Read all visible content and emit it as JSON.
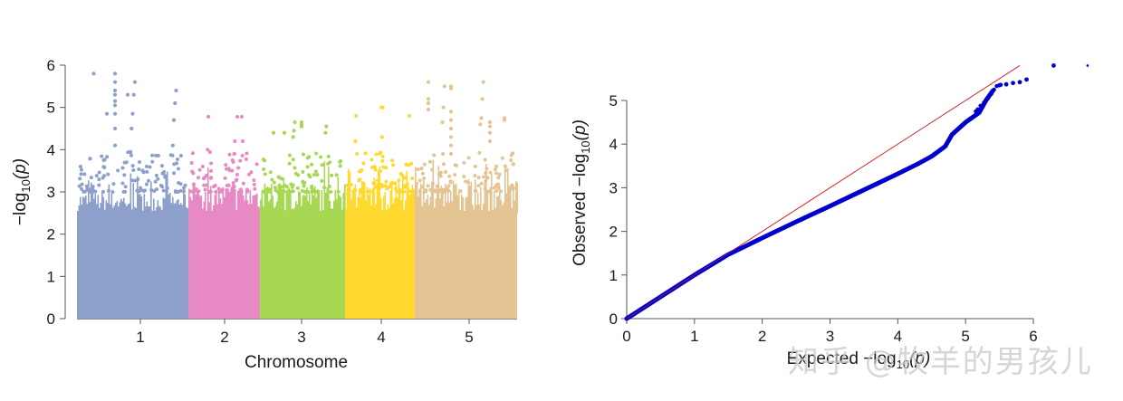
{
  "chart_data": [
    {
      "type": "scatter",
      "subtype": "manhattan",
      "title": "",
      "xlabel": "Chromosome",
      "ylabel": "-log10(p)",
      "ylim": [
        0,
        6
      ],
      "yticks": [
        "0",
        "1",
        "2",
        "3",
        "4",
        "5",
        "6"
      ],
      "categories": [
        "1",
        "2",
        "3",
        "4",
        "5"
      ],
      "grid": false,
      "legend": null,
      "series": [
        {
          "name": "1",
          "color": "#8da0cb",
          "bulk_max": 3.0,
          "peaks": [
            5.8,
            5.6,
            5.4,
            5.3,
            5.1,
            4.85,
            4.7,
            4.5,
            4.1,
            3.95
          ]
        },
        {
          "name": "2",
          "color": "#e78ac3",
          "bulk_max": 3.2,
          "peaks": [
            4.78,
            4.2,
            4.0,
            3.9
          ]
        },
        {
          "name": "3",
          "color": "#a6d854",
          "bulk_max": 3.2,
          "peaks": [
            4.65,
            4.55,
            4.45,
            4.4,
            4.3
          ]
        },
        {
          "name": "4",
          "color": "#ffd92f",
          "bulk_max": 3.3,
          "peaks": [
            5.0,
            4.8,
            4.3,
            4.2
          ]
        },
        {
          "name": "5",
          "color": "#e5c494",
          "bulk_max": 3.3,
          "peaks": [
            5.6,
            5.5,
            5.2,
            5.0,
            4.75,
            4.65,
            4.6
          ]
        }
      ]
    },
    {
      "type": "scatter",
      "subtype": "qq",
      "title": "",
      "xlabel": "Expected -log10(p)",
      "ylabel": "Observed -log10(p)",
      "xlim": [
        0,
        6
      ],
      "ylim": [
        0,
        5
      ],
      "xticks": [
        "0",
        "1",
        "2",
        "3",
        "4",
        "5",
        "6"
      ],
      "yticks": [
        "0",
        "1",
        "2",
        "3",
        "4",
        "5"
      ],
      "grid": false,
      "reference_line": {
        "color": "#d62728",
        "x": [
          0,
          5.8
        ],
        "y": [
          0,
          5.8
        ]
      },
      "series": [
        {
          "name": "observed",
          "color": "#0000cc",
          "x": [
            0,
            0.5,
            1.0,
            1.5,
            2.0,
            2.5,
            3.0,
            3.5,
            4.0,
            4.3,
            4.5,
            4.7,
            4.8,
            5.0,
            5.2,
            5.3,
            5.4,
            5.5,
            5.6,
            5.7,
            5.8,
            5.9,
            6.3,
            6.8
          ],
          "y": [
            0,
            0.5,
            1.0,
            1.47,
            1.85,
            2.22,
            2.58,
            2.95,
            3.32,
            3.55,
            3.72,
            3.95,
            4.22,
            4.5,
            4.72,
            5.0,
            5.22,
            5.35,
            5.37,
            5.4,
            5.42,
            5.48,
            5.8,
            5.8
          ]
        }
      ]
    }
  ],
  "manhattan": {
    "xlabel": "Chromosome",
    "ylabel_prefix": "−log",
    "ylabel_sub": "10",
    "ylabel_suffix": "(p)",
    "yticks": [
      "0",
      "1",
      "2",
      "3",
      "4",
      "5",
      "6"
    ],
    "xticks": [
      "1",
      "2",
      "3",
      "4",
      "5"
    ],
    "colors": [
      "#8da0cb",
      "#e78ac3",
      "#a6d854",
      "#ffd92f",
      "#e5c494"
    ]
  },
  "qq": {
    "xlabel_prefix": "Expected  −log",
    "xlabel_sub": "10",
    "xlabel_suffix": "(p)",
    "ylabel_prefix": "Observed  −log",
    "ylabel_sub": "10",
    "ylabel_suffix": "(p)",
    "xticks": [
      "0",
      "1",
      "2",
      "3",
      "4",
      "5",
      "6"
    ],
    "yticks": [
      "0",
      "1",
      "2",
      "3",
      "4",
      "5"
    ],
    "line_color": "#d62728",
    "point_color": "#0000cc"
  },
  "watermark": "知乎 @牧羊的男孩儿"
}
